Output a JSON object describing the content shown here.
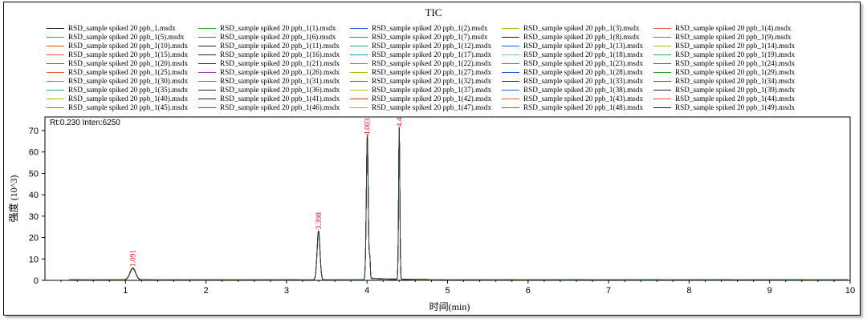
{
  "readout": {
    "rt": "Rt:0.230",
    "inten": "Inten:6250"
  },
  "chart_data": {
    "type": "line",
    "title": "TIC",
    "xlabel": "时间(min)",
    "ylabel": "强度 (10^3)",
    "xlim": [
      0,
      10
    ],
    "ylim": [
      0,
      75
    ],
    "xticks": [
      1,
      2,
      3,
      4,
      5,
      6,
      7,
      8,
      9,
      10
    ],
    "yticks": [
      0,
      10,
      20,
      30,
      40,
      50,
      60,
      70
    ],
    "grid": false,
    "legend": "top",
    "peaks": [
      {
        "rt": 1.091,
        "label": "1.091",
        "height": 5.5,
        "width": 0.035
      },
      {
        "rt": 3.398,
        "label": "3.398",
        "height": 23,
        "width": 0.018
      },
      {
        "rt": 4.003,
        "label": "4.003",
        "height": 67,
        "width": 0.012
      },
      {
        "rt": 4.4,
        "label": "4.4",
        "height": 71,
        "width": 0.008
      }
    ],
    "series_colors": [
      "#1f1f1f",
      "#2ca02c",
      "#1f5fd6",
      "#b8b800",
      "#e8623a",
      "#8e44ad",
      "#17a2b8",
      "#c0392b"
    ],
    "series": [
      {
        "name": "RSD_sample spiked 20 ppb_1.msdx",
        "color": "#222222"
      },
      {
        "name": "RSD_sample spiked 20 ppb_1(1).msdx",
        "color": "#2ca02c"
      },
      {
        "name": "RSD_sample spiked 20 ppb_1(2).msdx",
        "color": "#1f5fd6"
      },
      {
        "name": "RSD_sample spiked 20 ppb_1(3).msdx",
        "color": "#b8b800"
      },
      {
        "name": "RSD_sample spiked 20 ppb_1(4).msdx",
        "color": "#e8623a"
      },
      {
        "name": "RSD_sample spiked 20 ppb_1(5).msdx",
        "color": "#17a2b8"
      },
      {
        "name": "RSD_sample spiked 20 ppb_1(6).msdx",
        "color": "#8e44ad"
      },
      {
        "name": "RSD_sample spiked 20 ppb_1(7).msdx",
        "color": "#2ca02c"
      },
      {
        "name": "RSD_sample spiked 20 ppb_1(8).msdx",
        "color": "#1f1f1f"
      },
      {
        "name": "RSD_sample spiked 20 ppb_1(9).msdx",
        "color": "#e84393"
      },
      {
        "name": "RSD_sample spiked 20 ppb_1(10).msdx",
        "color": "#d35400"
      },
      {
        "name": "RSD_sample spiked 20 ppb_1(11).msdx",
        "color": "#222222"
      },
      {
        "name": "RSD_sample spiked 20 ppb_1(12).msdx",
        "color": "#27ae60"
      },
      {
        "name": "RSD_sample spiked 20 ppb_1(13).msdx",
        "color": "#1f5fd6"
      },
      {
        "name": "RSD_sample spiked 20 ppb_1(14).msdx",
        "color": "#b8b800"
      },
      {
        "name": "RSD_sample spiked 20 ppb_1(15).msdx",
        "color": "#e74c3c"
      },
      {
        "name": "RSD_sample spiked 20 ppb_1(16).msdx",
        "color": "#222222"
      },
      {
        "name": "RSD_sample spiked 20 ppb_1(17).msdx",
        "color": "#17a2b8"
      },
      {
        "name": "RSD_sample spiked 20 ppb_1(18).msdx",
        "color": "#7fb3d5"
      },
      {
        "name": "RSD_sample spiked 20 ppb_1(19).msdx",
        "color": "#27ae60"
      },
      {
        "name": "RSD_sample spiked 20 ppb_1(20).msdx",
        "color": "#c0392b"
      },
      {
        "name": "RSD_sample spiked 20 ppb_1(21).msdx",
        "color": "#222222"
      },
      {
        "name": "RSD_sample spiked 20 ppb_1(22).msdx",
        "color": "#17a2b8"
      },
      {
        "name": "RSD_sample spiked 20 ppb_1(23).msdx",
        "color": "#2ca02c"
      },
      {
        "name": "RSD_sample spiked 20 ppb_1(24).msdx",
        "color": "#1f5fd6"
      },
      {
        "name": "RSD_sample spiked 20 ppb_1(25).msdx",
        "color": "#e8623a"
      },
      {
        "name": "RSD_sample spiked 20 ppb_1(26).msdx",
        "color": "#8e44ad"
      },
      {
        "name": "RSD_sample spiked 20 ppb_1(27).msdx",
        "color": "#b8b800"
      },
      {
        "name": "RSD_sample spiked 20 ppb_1(28).msdx",
        "color": "#1f5fd6"
      },
      {
        "name": "RSD_sample spiked 20 ppb_1(29).msdx",
        "color": "#2ca02c"
      },
      {
        "name": "RSD_sample spiked 20 ppb_1(30).msdx",
        "color": "#17a2b8"
      },
      {
        "name": "RSD_sample spiked 20 ppb_1(31).msdx",
        "color": "#d35400"
      },
      {
        "name": "RSD_sample spiked 20 ppb_1(32).msdx",
        "color": "#c0392b"
      },
      {
        "name": "RSD_sample spiked 20 ppb_1(33).msdx",
        "color": "#222222"
      },
      {
        "name": "RSD_sample spiked 20 ppb_1(34).msdx",
        "color": "#1f5fd6"
      },
      {
        "name": "RSD_sample spiked 20 ppb_1(35).msdx",
        "color": "#27ae60"
      },
      {
        "name": "RSD_sample spiked 20 ppb_1(36).msdx",
        "color": "#222222"
      },
      {
        "name": "RSD_sample spiked 20 ppb_1(37).msdx",
        "color": "#b8b800"
      },
      {
        "name": "RSD_sample spiked 20 ppb_1(38).msdx",
        "color": "#1f5fd6"
      },
      {
        "name": "RSD_sample spiked 20 ppb_1(39).msdx",
        "color": "#222222"
      },
      {
        "name": "RSD_sample spiked 20 ppb_1(40).msdx",
        "color": "#b8b800"
      },
      {
        "name": "RSD_sample spiked 20 ppb_1(41).msdx",
        "color": "#222222"
      },
      {
        "name": "RSD_sample spiked 20 ppb_1(42).msdx",
        "color": "#c0392b"
      },
      {
        "name": "RSD_sample spiked 20 ppb_1(43).msdx",
        "color": "#e8623a"
      },
      {
        "name": "RSD_sample spiked 20 ppb_1(44).msdx",
        "color": "#e74c3c"
      },
      {
        "name": "RSD_sample spiked 20 ppb_1(45).msdx",
        "color": "#27ae60"
      },
      {
        "name": "RSD_sample spiked 20 ppb_1(46).msdx",
        "color": "#1f5fd6"
      },
      {
        "name": "RSD_sample spiked 20 ppb_1(47).msdx",
        "color": "#b8b800"
      },
      {
        "name": "RSD_sample spiked 20 ppb_1(48).msdx",
        "color": "#d35400"
      },
      {
        "name": "RSD_sample spiked 20 ppb_1(49).msdx",
        "color": "#222222"
      }
    ]
  }
}
